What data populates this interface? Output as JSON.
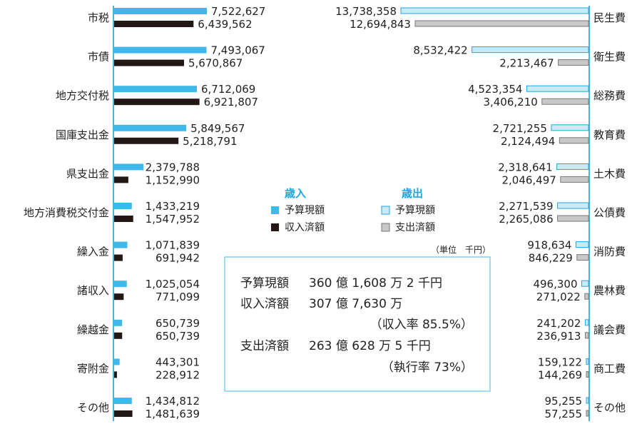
{
  "chart_data": [
    {
      "type": "bar",
      "orientation": "horizontal",
      "side": "revenue",
      "categories": [
        "市税",
        "市債",
        "地方交付税",
        "国庫支出金",
        "県支出金",
        "地方消費税交付金",
        "繰入金",
        "諸収入",
        "繰越金",
        "寄附金",
        "その他"
      ],
      "series": [
        {
          "name": "予算現額",
          "values": [
            7522627,
            7493067,
            6712069,
            5849567,
            2379788,
            1433219,
            1071839,
            1025054,
            650739,
            443301,
            1434812
          ],
          "labels": [
            "7,522,627",
            "7,493,067",
            "6,712,069",
            "5,849,567",
            "2,379,788",
            "1,433,219",
            "1,071,839",
            "1,025,054",
            "650,739",
            "443,301",
            "1,434,812"
          ]
        },
        {
          "name": "収入済額",
          "values": [
            6439562,
            5670867,
            6921807,
            5218791,
            1152990,
            1547952,
            691942,
            771099,
            650739,
            228912,
            1481639
          ],
          "labels": [
            "6,439,562",
            "5,670,867",
            "6,921,807",
            "5,218,791",
            "1,152,990",
            "1,547,952",
            "691,942",
            "771,099",
            "650,739",
            "228,912",
            "1,481,639"
          ]
        }
      ],
      "legend_title": "歳入"
    },
    {
      "type": "bar",
      "orientation": "horizontal",
      "side": "expenditure",
      "categories": [
        "民生費",
        "衛生費",
        "総務費",
        "教育費",
        "土木費",
        "公債費",
        "消防費",
        "農林費",
        "議会費",
        "商工費",
        "その他"
      ],
      "series": [
        {
          "name": "予算現額",
          "values": [
            13738358,
            8532422,
            4523354,
            2721255,
            2318641,
            2271539,
            918634,
            496300,
            241202,
            159122,
            95255
          ],
          "labels": [
            "13,738,358",
            "8,532,422",
            "4,523,354",
            "2,721,255",
            "2,318,641",
            "2,271,539",
            "918,634",
            "496,300",
            "241,202",
            "159,122",
            "95,255"
          ]
        },
        {
          "name": "支出済額",
          "values": [
            12694843,
            2213467,
            3406210,
            2124494,
            2046497,
            2265086,
            846229,
            271022,
            236913,
            144269,
            57255
          ],
          "labels": [
            "12,694,843",
            "2,213,467",
            "3,406,210",
            "2,124,494",
            "2,046,497",
            "2,265,086",
            "846,229",
            "271,022",
            "236,913",
            "144,269",
            "57,255"
          ]
        }
      ],
      "legend_title": "歳出"
    }
  ],
  "unit_note": "（単位　千円）",
  "summary": {
    "rows": [
      {
        "label": "予算現額",
        "value": "360 億 1,608 万 2 千円"
      },
      {
        "label": "収入済額",
        "value": "307 億 7,630 万"
      },
      {
        "label": "",
        "value": "（収入率 85.5%）"
      },
      {
        "label": "支出済額",
        "value": "263 億 628 万 5 千円"
      },
      {
        "label": "",
        "value": "（執行率 73%）"
      }
    ]
  },
  "colors": {
    "revenue_budget": "#40b8ea",
    "revenue_actual": "#231815",
    "expense_budget": "#cbeaf8",
    "expense_budget_border": "#1ea6df",
    "expense_actual": "#c8c8c8",
    "expense_actual_border": "#777777",
    "axis": "#40b8ea",
    "box_border": "#40b8ea"
  }
}
